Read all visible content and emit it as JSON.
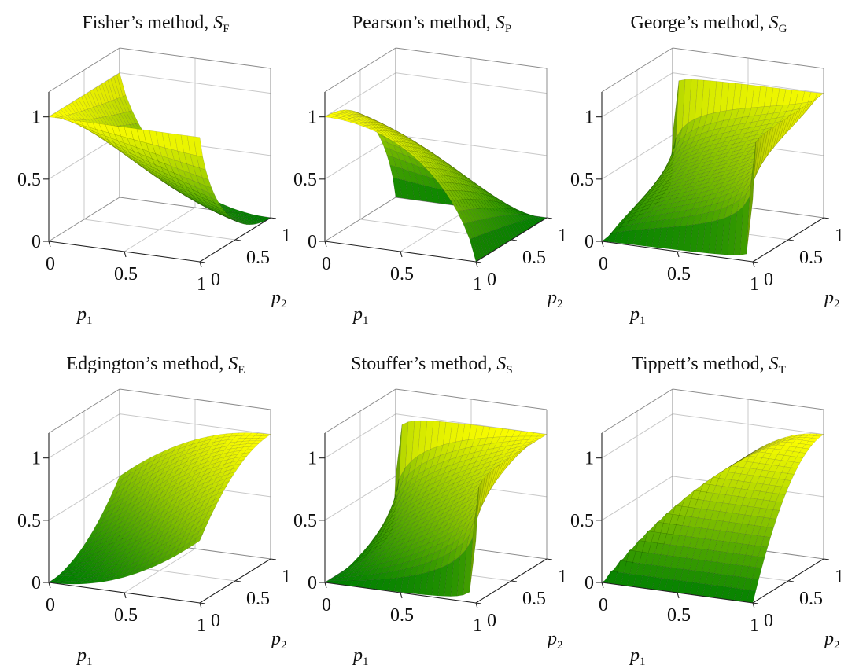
{
  "chart_data": [
    {
      "type": "surface",
      "title": "Fisher’s method, ",
      "title_symbol": "S",
      "title_subscript": "F",
      "method": "fisher",
      "xlabel": "p",
      "xlabel_sub": "1",
      "ylabel": "p",
      "ylabel_sub": "2",
      "xlim": [
        0,
        1
      ],
      "ylim": [
        0,
        1
      ],
      "zlim": [
        0,
        1.2
      ],
      "x_ticks": [
        "0",
        "0.5",
        "1"
      ],
      "y_ticks": [
        "0",
        "0.5",
        "1"
      ],
      "z_ticks": [
        "0",
        "0.5",
        "1"
      ],
      "grid": true,
      "colormap": [
        "#008000",
        "#ffff00"
      ]
    },
    {
      "type": "surface",
      "title": "Pearson’s method, ",
      "title_symbol": "S",
      "title_subscript": "P",
      "method": "pearson",
      "xlabel": "p",
      "xlabel_sub": "1",
      "ylabel": "p",
      "ylabel_sub": "2",
      "xlim": [
        0,
        1
      ],
      "ylim": [
        0,
        1
      ],
      "zlim": [
        0,
        1.2
      ],
      "x_ticks": [
        "0",
        "0.5",
        "1"
      ],
      "y_ticks": [
        "0",
        "0.5",
        "1"
      ],
      "z_ticks": [
        "0",
        "0.5",
        "1"
      ],
      "grid": true,
      "colormap": [
        "#008000",
        "#ffff00"
      ]
    },
    {
      "type": "surface",
      "title": "George’s method, ",
      "title_symbol": "S",
      "title_subscript": "G",
      "method": "george",
      "xlabel": "p",
      "xlabel_sub": "1",
      "ylabel": "p",
      "ylabel_sub": "2",
      "xlim": [
        0,
        1
      ],
      "ylim": [
        0,
        1
      ],
      "zlim": [
        0,
        1.2
      ],
      "x_ticks": [
        "0",
        "0.5",
        "1"
      ],
      "y_ticks": [
        "0",
        "0.5",
        "1"
      ],
      "z_ticks": [
        "0",
        "0.5",
        "1"
      ],
      "grid": true,
      "colormap": [
        "#008000",
        "#ffff00"
      ]
    },
    {
      "type": "surface",
      "title": "Edgington’s method, ",
      "title_symbol": "S",
      "title_subscript": "E",
      "method": "edgington",
      "xlabel": "p",
      "xlabel_sub": "1",
      "ylabel": "p",
      "ylabel_sub": "2",
      "xlim": [
        0,
        1
      ],
      "ylim": [
        0,
        1
      ],
      "zlim": [
        0,
        1.2
      ],
      "x_ticks": [
        "0",
        "0.5",
        "1"
      ],
      "y_ticks": [
        "0",
        "0.5",
        "1"
      ],
      "z_ticks": [
        "0",
        "0.5",
        "1"
      ],
      "grid": true,
      "colormap": [
        "#008000",
        "#ffff00"
      ]
    },
    {
      "type": "surface",
      "title": "Stouffer’s method, ",
      "title_symbol": "S",
      "title_subscript": "S",
      "method": "stouffer",
      "xlabel": "p",
      "xlabel_sub": "1",
      "ylabel": "p",
      "ylabel_sub": "2",
      "xlim": [
        0,
        1
      ],
      "ylim": [
        0,
        1
      ],
      "zlim": [
        0,
        1.2
      ],
      "x_ticks": [
        "0",
        "0.5",
        "1"
      ],
      "y_ticks": [
        "0",
        "0.5",
        "1"
      ],
      "z_ticks": [
        "0",
        "0.5",
        "1"
      ],
      "grid": true,
      "colormap": [
        "#008000",
        "#ffff00"
      ]
    },
    {
      "type": "surface",
      "title": "Tippett’s method, ",
      "title_symbol": "S",
      "title_subscript": "T",
      "method": "tippett",
      "xlabel": "p",
      "xlabel_sub": "1",
      "ylabel": "p",
      "ylabel_sub": "2",
      "xlim": [
        0,
        1
      ],
      "ylim": [
        0,
        1
      ],
      "zlim": [
        0,
        1.2
      ],
      "x_ticks": [
        "0",
        "0.5",
        "1"
      ],
      "y_ticks": [
        "0",
        "0.5",
        "1"
      ],
      "z_ticks": [
        "0",
        "0.5",
        "1"
      ],
      "grid": true,
      "colormap": [
        "#008000",
        "#ffff00"
      ]
    }
  ]
}
